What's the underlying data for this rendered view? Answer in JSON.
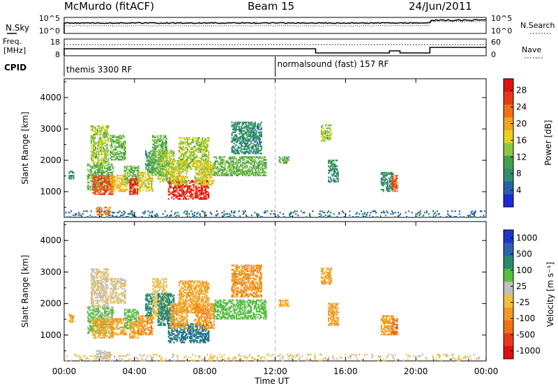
{
  "header": {
    "station": "McMurdo (fitACF)",
    "beam": "Beam 15",
    "date": "24/Jun/2011"
  },
  "nsky_panel": {
    "left_label": "N.Sky",
    "right_label": "N.Search",
    "left_ticks": [
      "10^5",
      "10^0"
    ],
    "right_ticks": [
      "10^5",
      "10^0"
    ]
  },
  "freq_panel": {
    "left_label_line1": "Freq.",
    "left_label_line2": "[MHz]",
    "right_label": "Nave",
    "left_ticks": [
      "18",
      "8"
    ],
    "right_ticks": [
      "60",
      "0"
    ]
  },
  "cpid_panel": {
    "label": "CPID",
    "programs": [
      {
        "name": "themis 3300 RF",
        "start_hour": 0
      },
      {
        "name": "normalsound (fast) 157 RF",
        "start_hour": 12.0
      }
    ]
  },
  "colors": {
    "power": [
      "#1a2ad8",
      "#2a5fb0",
      "#2f8f6f",
      "#43a050",
      "#8dc63f",
      "#e8d21e",
      "#f2a51a",
      "#f07018",
      "#e83818",
      "#e01010"
    ],
    "velocity": [
      "#2035c8",
      "#2c62b0",
      "#2a8a70",
      "#55c040",
      "#c0c0c0",
      "#f2c040",
      "#f29a20",
      "#f07018",
      "#e83818",
      "#e01010"
    ]
  },
  "chart_data": [
    {
      "type": "heatmap",
      "title": "",
      "xlabel": "",
      "ylabel": "Slant Range [km]",
      "xlim": [
        0,
        24
      ],
      "ylim": [
        180,
        4600
      ],
      "yticks": [
        "1000",
        "2000",
        "3000",
        "4000"
      ],
      "xticks": [
        "00:00",
        "04:00",
        "08:00",
        "12:00",
        "16:00",
        "20:00",
        "00:00"
      ],
      "colorbar": {
        "label": "Power [dB]",
        "ticks": [
          "4",
          "8",
          "12",
          "16",
          "20",
          "24",
          "28"
        ],
        "range": [
          0,
          30
        ]
      },
      "clusters": [
        {
          "t0": 0.25,
          "t1": 0.5,
          "r0": 1400,
          "r1": 1650,
          "v": 8
        },
        {
          "t0": 1.3,
          "t1": 2.8,
          "r0": 1050,
          "r1": 1900,
          "v": 12
        },
        {
          "t0": 1.6,
          "t1": 2.8,
          "r0": 900,
          "r1": 1500,
          "v": 24
        },
        {
          "t0": 1.5,
          "t1": 2.5,
          "r0": 1900,
          "r1": 3100,
          "v": 14
        },
        {
          "t0": 2.6,
          "t1": 3.5,
          "r0": 2000,
          "r1": 2800,
          "v": 12
        },
        {
          "t0": 2.6,
          "t1": 3.6,
          "r0": 1000,
          "r1": 1500,
          "v": 18
        },
        {
          "t0": 3.4,
          "t1": 4.2,
          "r0": 1200,
          "r1": 1800,
          "v": 12
        },
        {
          "t0": 3.7,
          "t1": 4.2,
          "r0": 900,
          "r1": 1400,
          "v": 26
        },
        {
          "t0": 4.2,
          "t1": 5.0,
          "r0": 1000,
          "r1": 1600,
          "v": 16
        },
        {
          "t0": 4.6,
          "t1": 5.1,
          "r0": 1600,
          "r1": 2300,
          "v": 10
        },
        {
          "t0": 5.0,
          "t1": 5.8,
          "r0": 1500,
          "r1": 2800,
          "v": 12
        },
        {
          "t0": 5.3,
          "t1": 6.2,
          "r0": 1300,
          "r1": 2300,
          "v": 14
        },
        {
          "t0": 5.9,
          "t1": 8.2,
          "r0": 750,
          "r1": 1350,
          "v": 27
        },
        {
          "t0": 6.0,
          "t1": 7.0,
          "r0": 1200,
          "r1": 2000,
          "v": 16
        },
        {
          "t0": 6.5,
          "t1": 8.2,
          "r0": 1700,
          "r1": 2700,
          "v": 14
        },
        {
          "t0": 7.4,
          "t1": 8.5,
          "r0": 1200,
          "r1": 2000,
          "v": 16
        },
        {
          "t0": 8.5,
          "t1": 11.5,
          "r0": 1500,
          "r1": 2100,
          "v": 12
        },
        {
          "t0": 9.5,
          "t1": 11.2,
          "r0": 2200,
          "r1": 3200,
          "v": 8
        },
        {
          "t0": 12.2,
          "t1": 12.8,
          "r0": 1900,
          "r1": 2100,
          "v": 12
        },
        {
          "t0": 15.0,
          "t1": 15.6,
          "r0": 1300,
          "r1": 2000,
          "v": 8
        },
        {
          "t0": 14.6,
          "t1": 15.2,
          "r0": 2600,
          "r1": 3100,
          "v": 14
        },
        {
          "t0": 18.0,
          "t1": 18.7,
          "r0": 1000,
          "r1": 1600,
          "v": 8
        },
        {
          "t0": 18.6,
          "t1": 18.9,
          "r0": 1000,
          "r1": 1500,
          "v": 24
        },
        {
          "t0": 1.8,
          "t1": 2.6,
          "r0": 250,
          "r1": 480,
          "v": 22
        },
        {
          "t0": 0,
          "t1": 24,
          "r0": 180,
          "r1": 400,
          "v": 6
        }
      ]
    },
    {
      "type": "heatmap",
      "title": "",
      "xlabel": "Time UT",
      "ylabel": "Slant Range [km]",
      "xlim": [
        0,
        24
      ],
      "ylim": [
        180,
        4600
      ],
      "yticks": [
        "1000",
        "2000",
        "3000",
        "4000"
      ],
      "xticks": [
        "00:00",
        "04:00",
        "08:00",
        "12:00",
        "16:00",
        "20:00",
        "00:00"
      ],
      "colorbar": {
        "label": "Velocity [m s⁻¹]",
        "ticks": [
          "1000",
          "500",
          "100",
          "25",
          "-25",
          "-100",
          "-500",
          "-1000"
        ],
        "range": [
          -1200,
          1200
        ]
      },
      "clusters": [
        {
          "t0": 0.25,
          "t1": 0.5,
          "r0": 1400,
          "r1": 1650,
          "v": -300
        },
        {
          "t0": 1.3,
          "t1": 2.8,
          "r0": 1050,
          "r1": 1900,
          "v": 300
        },
        {
          "t0": 1.6,
          "t1": 2.8,
          "r0": 900,
          "r1": 1500,
          "v": -300
        },
        {
          "t0": 1.5,
          "t1": 2.5,
          "r0": 1900,
          "r1": 3100,
          "v": 50
        },
        {
          "t0": 2.6,
          "t1": 3.5,
          "r0": 2000,
          "r1": 2800,
          "v": 0
        },
        {
          "t0": 2.6,
          "t1": 3.6,
          "r0": 1000,
          "r1": 1500,
          "v": -300
        },
        {
          "t0": 3.4,
          "t1": 4.2,
          "r0": 1200,
          "r1": 1800,
          "v": 300
        },
        {
          "t0": 3.7,
          "t1": 4.2,
          "r0": 900,
          "r1": 1400,
          "v": -300
        },
        {
          "t0": 4.2,
          "t1": 5.0,
          "r0": 1000,
          "r1": 1600,
          "v": -400
        },
        {
          "t0": 4.6,
          "t1": 5.1,
          "r0": 1600,
          "r1": 2300,
          "v": 600
        },
        {
          "t0": 5.0,
          "t1": 5.8,
          "r0": 1500,
          "r1": 2800,
          "v": -80
        },
        {
          "t0": 5.3,
          "t1": 6.2,
          "r0": 1300,
          "r1": 2300,
          "v": 600
        },
        {
          "t0": 5.9,
          "t1": 8.2,
          "r0": 750,
          "r1": 1350,
          "v": 700
        },
        {
          "t0": 6.0,
          "t1": 7.0,
          "r0": 1200,
          "r1": 2000,
          "v": -300
        },
        {
          "t0": 6.5,
          "t1": 8.2,
          "r0": 1700,
          "r1": 2700,
          "v": -300
        },
        {
          "t0": 7.4,
          "t1": 8.5,
          "r0": 1200,
          "r1": 2000,
          "v": -400
        },
        {
          "t0": 8.5,
          "t1": 11.5,
          "r0": 1500,
          "r1": 2100,
          "v": 350
        },
        {
          "t0": 9.5,
          "t1": 11.2,
          "r0": 2200,
          "r1": 3200,
          "v": -400
        },
        {
          "t0": 12.2,
          "t1": 12.8,
          "r0": 1900,
          "r1": 2100,
          "v": -300
        },
        {
          "t0": 15.0,
          "t1": 15.6,
          "r0": 1300,
          "r1": 2000,
          "v": -350
        },
        {
          "t0": 14.6,
          "t1": 15.2,
          "r0": 2600,
          "r1": 3100,
          "v": -300
        },
        {
          "t0": 18.0,
          "t1": 18.7,
          "r0": 1000,
          "r1": 1600,
          "v": -350
        },
        {
          "t0": 18.6,
          "t1": 18.9,
          "r0": 1000,
          "r1": 1500,
          "v": -600
        },
        {
          "t0": 1.8,
          "t1": 2.6,
          "r0": 250,
          "r1": 480,
          "v": 120
        },
        {
          "t0": 0,
          "t1": 24,
          "r0": 180,
          "r1": 400,
          "v": -60
        }
      ]
    }
  ]
}
